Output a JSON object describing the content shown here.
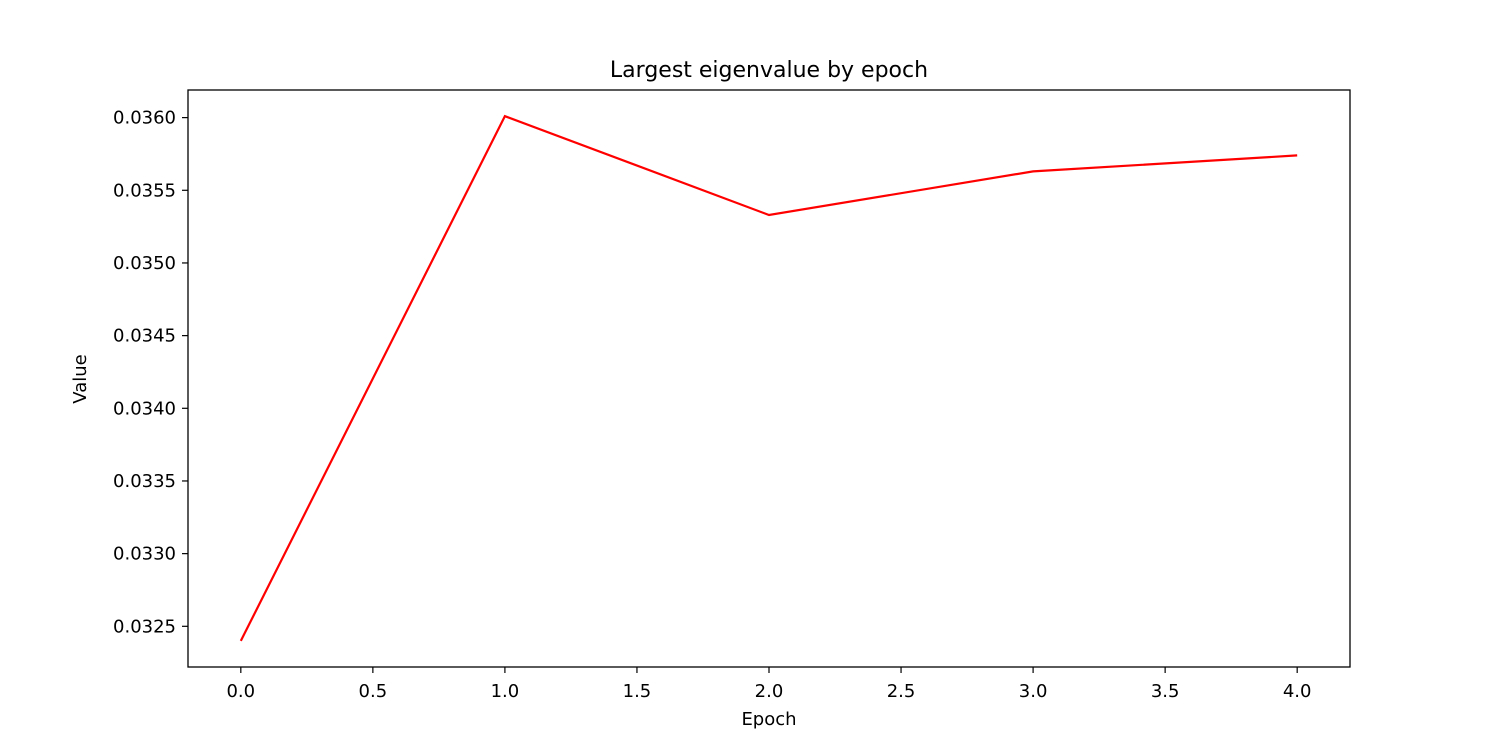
{
  "chart_data": {
    "type": "line",
    "title": "Largest eigenvalue by epoch",
    "xlabel": "Epoch",
    "ylabel": "Value",
    "xlim": [
      -0.2,
      4.2
    ],
    "ylim": [
      0.03222,
      0.03619
    ],
    "xticks": [
      0.0,
      0.5,
      1.0,
      1.5,
      2.0,
      2.5,
      3.0,
      3.5,
      4.0
    ],
    "xtick_labels": [
      "0.0",
      "0.5",
      "1.0",
      "1.5",
      "2.0",
      "2.5",
      "3.0",
      "3.5",
      "4.0"
    ],
    "yticks": [
      0.0325,
      0.033,
      0.0335,
      0.034,
      0.0345,
      0.035,
      0.0355,
      0.036
    ],
    "ytick_labels": [
      "0.0325",
      "0.0330",
      "0.0335",
      "0.0340",
      "0.0345",
      "0.0350",
      "0.0355",
      "0.0360"
    ],
    "grid": false,
    "series": [
      {
        "color": "#ff0000",
        "x": [
          0,
          1,
          2,
          3,
          4
        ],
        "values": [
          0.0324,
          0.03601,
          0.03533,
          0.03563,
          0.03574
        ]
      }
    ]
  }
}
